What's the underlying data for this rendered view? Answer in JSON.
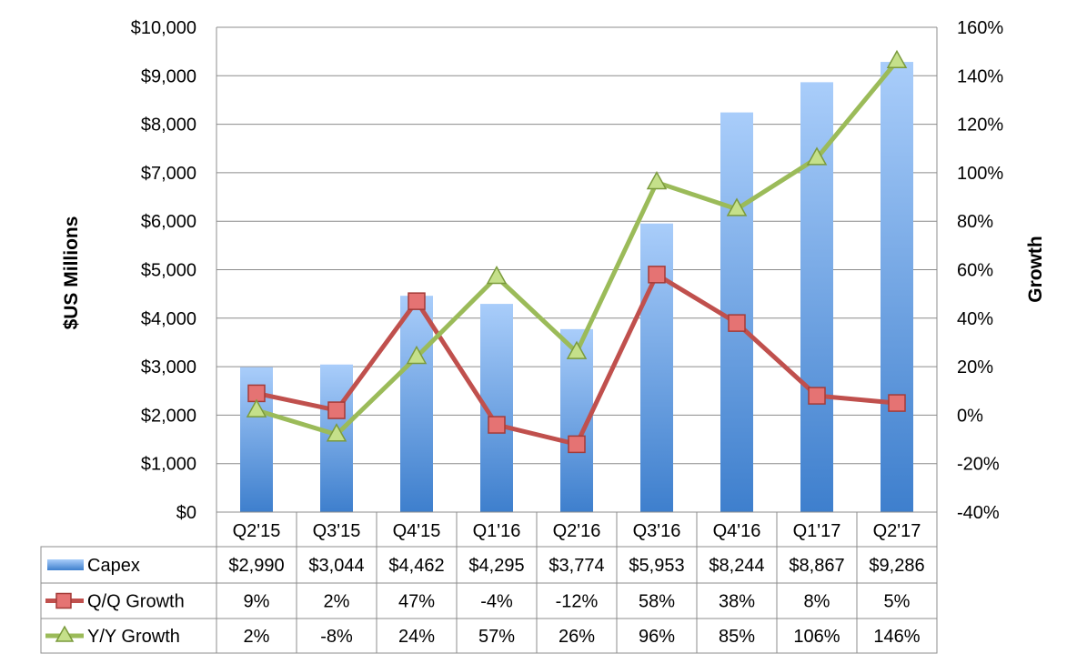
{
  "chart_data": {
    "type": "bar",
    "categories": [
      "Q2'15",
      "Q3'15",
      "Q4'15",
      "Q1'16",
      "Q2'16",
      "Q3'16",
      "Q4'16",
      "Q1'17",
      "Q2'17"
    ],
    "series": [
      {
        "name": "Capex",
        "type": "bar",
        "axis": "left",
        "color": "#5b9bd5",
        "values": [
          2990,
          3044,
          4462,
          4295,
          3774,
          5953,
          8244,
          8867,
          9286
        ],
        "table_labels": [
          "$2,990",
          "$3,044",
          "$4,462",
          "$4,295",
          "$3,774",
          "$5,953",
          "$8,244",
          "$8,867",
          "$9,286"
        ]
      },
      {
        "name": "Q/Q Growth",
        "type": "line",
        "axis": "right",
        "color": "#c0504d",
        "marker": "square",
        "values": [
          9,
          2,
          47,
          -4,
          -12,
          58,
          38,
          8,
          5
        ],
        "table_labels": [
          "9%",
          "2%",
          "47%",
          "-4%",
          "-12%",
          "58%",
          "38%",
          "8%",
          "5%"
        ]
      },
      {
        "name": "Y/Y Growth",
        "type": "line",
        "axis": "right",
        "color": "#9bbb59",
        "marker": "triangle",
        "values": [
          2,
          -8,
          24,
          57,
          26,
          96,
          85,
          106,
          146
        ],
        "table_labels": [
          "2%",
          "-8%",
          "24%",
          "57%",
          "26%",
          "96%",
          "85%",
          "106%",
          "146%"
        ]
      }
    ],
    "ylabel": "$US Millions",
    "ylabel_right": "Growth",
    "ylim": [
      0,
      10000
    ],
    "ylim_right": [
      -40,
      160
    ],
    "yticks": [
      "$0",
      "$1,000",
      "$2,000",
      "$3,000",
      "$4,000",
      "$5,000",
      "$6,000",
      "$7,000",
      "$8,000",
      "$9,000",
      "$10,000"
    ],
    "yticks_right": [
      "-40%",
      "-20%",
      "0%",
      "20%",
      "40%",
      "60%",
      "80%",
      "100%",
      "120%",
      "140%",
      "160%"
    ],
    "grid": true,
    "legend": "data-table"
  }
}
